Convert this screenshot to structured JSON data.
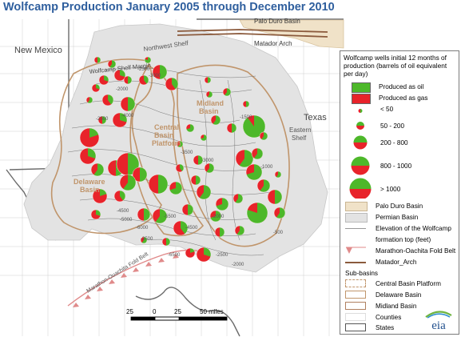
{
  "title": "Wolfcamp Production January 2005 through December 2010",
  "map_labels": {
    "palo_duro": "Palo Duro Basin",
    "matador_arch": "Matador Arch",
    "northwest_shelf": "Northwest Shelf",
    "new_mexico": "New Mexico",
    "texas": "Texas",
    "wolfcamp_shelf_margin": "Wolfcamp Shelf Margin",
    "midland_basin": "Midland Basin",
    "central_basin_platform": "Central Basin Platform",
    "eastern_shelf": "Eastern Shelf",
    "delaware_basin": "Delaware Basin",
    "fold_belt": "Marathon-Ouachita Fold Belt"
  },
  "contours": [
    "-2500",
    "-3000",
    "-2000",
    "-4000",
    "-2500",
    "-1500",
    "-3500",
    "-1000",
    "-4500",
    "-3000",
    "-2000",
    "-5500",
    "-6000",
    "-4500",
    "-3500",
    "-500",
    "-2500",
    "-6500",
    "-2000",
    "-5000"
  ],
  "scale_bar": {
    "ticks": [
      "25",
      "0",
      "25",
      "50 miles"
    ]
  },
  "legend": {
    "header": "Wolfcamp wells initial 12 months of production (barrels of oil equivalent per day)",
    "oil_label": "Produced as oil",
    "gas_label": "Produced as gas",
    "oil_color": "#4db82a",
    "gas_color": "#e8232a",
    "sizes": [
      "< 50",
      "50 - 200",
      "200 - 800",
      "800 - 1000",
      "> 1000"
    ],
    "palo_duro": "Palo Duro Basin",
    "permian": "Permian Basin",
    "elevation_1": "Elevation of the Wolfcamp",
    "elevation_2": "formation top (feet)",
    "fold_belt": "Marathon-Oachita Fold Belt",
    "matador": "Matador_Arch",
    "subbasins": "Sub-basins",
    "central": "Central Basin Platform",
    "delaware": "Delaware Basin",
    "midland": "Midland Basin",
    "counties": "Counties",
    "states": "States"
  },
  "logo": "eia",
  "colors": {
    "title": "#2f5f9e",
    "permian_fill": "#e3e3e3",
    "palo_duro_fill": "#f0e2c8",
    "subbasin_line": "#c0956b",
    "matador_line": "#8b5a3c",
    "fold_belt": "#e08a8a"
  }
}
